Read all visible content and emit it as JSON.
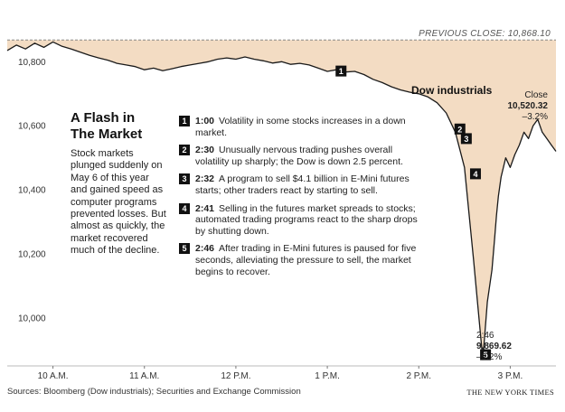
{
  "chart_data": {
    "type": "line",
    "title": "",
    "xlabel": "",
    "ylabel": "",
    "ylim": [
      9850,
      10880
    ],
    "xlim": [
      9.5,
      15.5
    ],
    "x_ticks": [
      {
        "value": 10,
        "label": "10 A.M."
      },
      {
        "value": 11,
        "label": "11 A.M."
      },
      {
        "value": 12,
        "label": "12 P.M."
      },
      {
        "value": 13,
        "label": "1 P.M."
      },
      {
        "value": 14,
        "label": "2 P.M."
      },
      {
        "value": 15,
        "label": "3 P.M."
      }
    ],
    "y_ticks": [
      {
        "value": 10800,
        "label": "10,800"
      },
      {
        "value": 10600,
        "label": "10,600"
      },
      {
        "value": 10400,
        "label": "10,400"
      },
      {
        "value": 10200,
        "label": "10,200"
      },
      {
        "value": 10000,
        "label": "10,000"
      }
    ],
    "reference_line": {
      "value": 10868.1,
      "label": "PREVIOUS CLOSE: 10,868.10"
    },
    "series": [
      {
        "name": "Dow industrials",
        "x": [
          9.5,
          9.6,
          9.7,
          9.8,
          9.9,
          10.0,
          10.1,
          10.2,
          10.3,
          10.4,
          10.5,
          10.6,
          10.7,
          10.8,
          10.9,
          11.0,
          11.1,
          11.2,
          11.3,
          11.4,
          11.5,
          11.6,
          11.7,
          11.8,
          11.9,
          12.0,
          12.1,
          12.2,
          12.3,
          12.4,
          12.5,
          12.6,
          12.7,
          12.8,
          12.9,
          13.0,
          13.1,
          13.2,
          13.3,
          13.4,
          13.5,
          13.6,
          13.7,
          13.8,
          13.9,
          14.0,
          14.1,
          14.2,
          14.3,
          14.4,
          14.5,
          14.6,
          14.7,
          14.75,
          14.8,
          14.83,
          14.85,
          14.87,
          14.9,
          14.95,
          15.0,
          15.05,
          15.1,
          15.15,
          15.2,
          15.25,
          15.3,
          15.35,
          15.4,
          15.45,
          15.5
        ],
        "values": [
          10835,
          10852,
          10840,
          10858,
          10845,
          10862,
          10848,
          10840,
          10830,
          10820,
          10812,
          10805,
          10795,
          10790,
          10785,
          10775,
          10780,
          10772,
          10778,
          10785,
          10790,
          10795,
          10800,
          10808,
          10812,
          10808,
          10815,
          10808,
          10803,
          10796,
          10800,
          10792,
          10795,
          10790,
          10780,
          10770,
          10775,
          10768,
          10770,
          10760,
          10745,
          10735,
          10722,
          10712,
          10705,
          10700,
          10690,
          10672,
          10640,
          10580,
          10470,
          10180,
          9869.62,
          10050,
          10150,
          10250,
          10320,
          10380,
          10440,
          10500,
          10470,
          10510,
          10540,
          10580,
          10560,
          10600,
          10620,
          10580,
          10560,
          10540,
          10520.32
        ]
      }
    ],
    "series_label": "Dow industrials",
    "close": {
      "label": "Close",
      "value_text": "10,520.32",
      "change_text": "–3.2%"
    },
    "low": {
      "time": "2:46",
      "value_text": "9,869.62",
      "change_text": "–9.2%"
    },
    "markers": [
      {
        "num": "1",
        "x": 13.15,
        "y": 10771
      },
      {
        "num": "2",
        "x": 14.45,
        "y": 10590
      },
      {
        "num": "3",
        "x": 14.52,
        "y": 10560
      },
      {
        "num": "4",
        "x": 14.62,
        "y": 10450
      },
      {
        "num": "5",
        "x": 14.73,
        "y": 9885
      }
    ],
    "grid": false,
    "legend": "none"
  },
  "sidebar": {
    "title_line1": "A Flash in",
    "title_line2": "The Market",
    "text": "Stock markets plunged suddenly on May 6 of this year and gained speed as computer programs prevented losses. But almost as quickly, the market recovered much of the decline."
  },
  "events": [
    {
      "num": "1",
      "time": "1:00",
      "text": "Volatility in some stocks increases in a down market."
    },
    {
      "num": "2",
      "time": "2:30",
      "text": "Unusually nervous trading pushes overall volatility up sharply; the Dow is down 2.5 percent."
    },
    {
      "num": "3",
      "time": "2:32",
      "text": "A program to sell $4.1 billion in E-Mini futures starts; other traders react by starting to sell."
    },
    {
      "num": "4",
      "time": "2:41",
      "text": "Selling in the futures market spreads to stocks; automated trading programs react to the sharp drops by shutting down."
    },
    {
      "num": "5",
      "time": "2:46",
      "text": "After trading in E-Mini futures is paused for five seconds, alleviating the pressure to sell, the market begins to recover."
    }
  ],
  "footer": {
    "sources": "Sources: Bloomberg (Dow industrials); Securities and Exchange Commission",
    "credit": "THE NEW YORK TIMES"
  },
  "colors": {
    "fill": "#f3dcc3",
    "line": "#1a1a1a",
    "reference": "#888888",
    "badge": "#111111"
  }
}
